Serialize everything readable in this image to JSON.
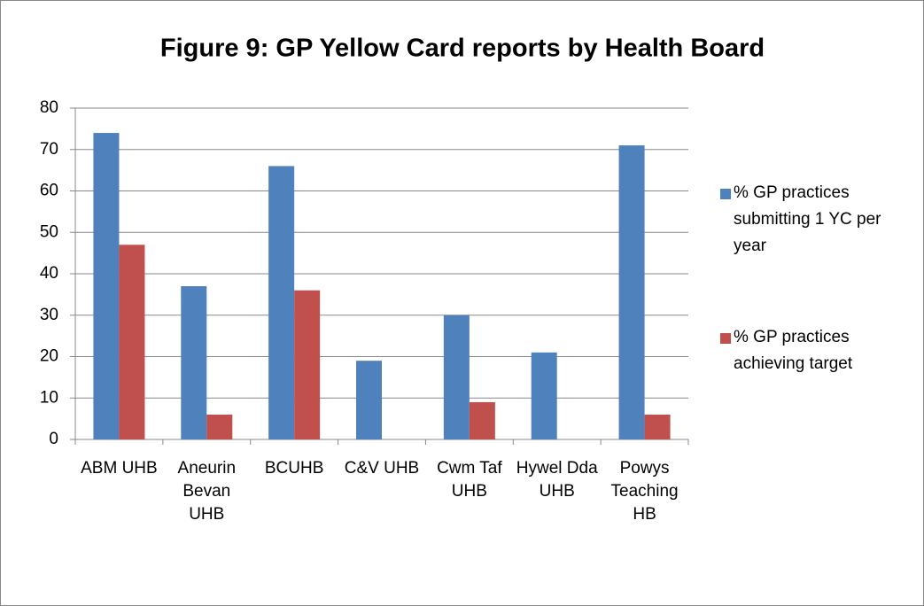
{
  "chart_data": {
    "type": "bar",
    "title": "Figure 9: GP Yellow Card reports by Health Board",
    "categories": [
      "ABM UHB",
      "Aneurin Bevan UHB",
      "BCUHB",
      "C&V UHB",
      "Cwm Taf UHB",
      "Hywel Dda UHB",
      "Powys Teaching HB"
    ],
    "series": [
      {
        "name": "% GP practices submitting 1 YC per year",
        "color": "#4f81bd",
        "values": [
          74,
          37,
          66,
          19,
          30,
          21,
          71
        ]
      },
      {
        "name": "% GP practices achieving target",
        "color": "#c0504d",
        "values": [
          47,
          6,
          36,
          0,
          9,
          0,
          6
        ]
      }
    ],
    "ylim": [
      0,
      80
    ],
    "yticks": [
      0,
      10,
      20,
      30,
      40,
      50,
      60,
      70,
      80
    ],
    "grid": true,
    "legend": "right"
  }
}
